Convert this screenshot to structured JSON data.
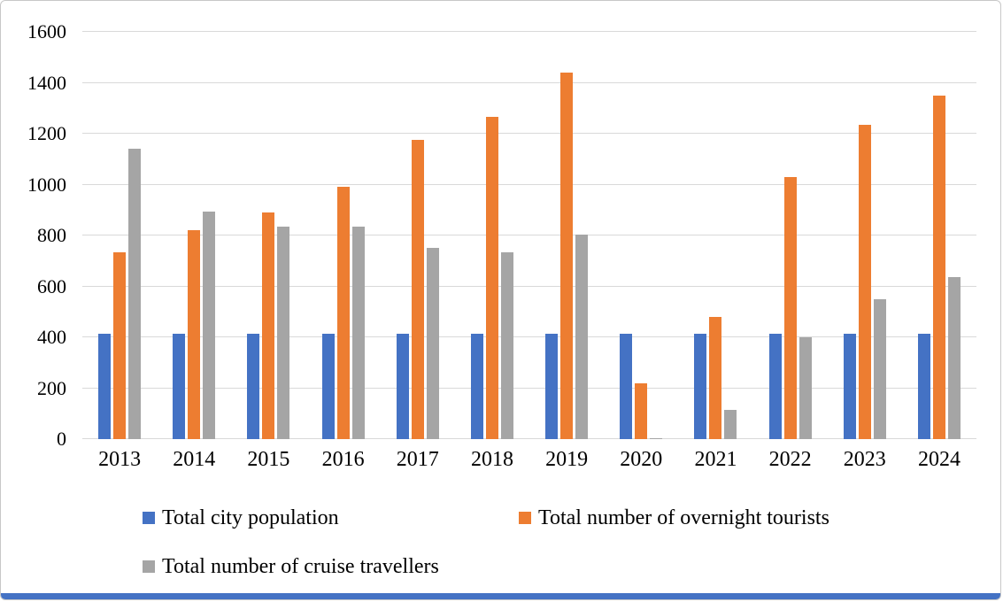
{
  "chart_data": {
    "type": "bar",
    "title": "",
    "xlabel": "",
    "ylabel": "",
    "categories": [
      "2013",
      "2014",
      "2015",
      "2016",
      "2017",
      "2018",
      "2019",
      "2020",
      "2021",
      "2022",
      "2023",
      "2024"
    ],
    "series": [
      {
        "name": "Total city population",
        "color": "#4472C4",
        "values": [
          415,
          415,
          415,
          415,
          415,
          415,
          415,
          415,
          415,
          415,
          415,
          415
        ]
      },
      {
        "name": "Total number of overnight tourists",
        "color": "#ED7D31",
        "values": [
          735,
          820,
          890,
          990,
          1175,
          1265,
          1440,
          220,
          480,
          1030,
          1235,
          1350
        ]
      },
      {
        "name": "Total number of cruise travellers",
        "color": "#A5A5A5",
        "values": [
          1140,
          895,
          835,
          835,
          750,
          735,
          805,
          5,
          115,
          400,
          550,
          635
        ]
      }
    ],
    "ylim": [
      0,
      1600
    ],
    "ytick_interval": 200,
    "yticks": [
      "0",
      "200",
      "400",
      "600",
      "800",
      "1000",
      "1200",
      "1400",
      "1600"
    ],
    "grid": "horizontal",
    "legend_position": "bottom-left"
  },
  "colors": {
    "gridline": "#d9d9d9",
    "axis_text": "#000000",
    "figure_border": "#c8c8c8",
    "background": "#ffffff",
    "bottom_strip": "#4472c4"
  }
}
